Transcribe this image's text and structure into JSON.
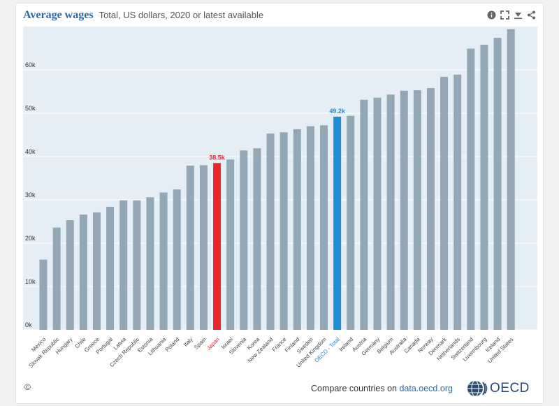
{
  "header": {
    "title": "Average wages",
    "subtitle": "Total, US dollars, 2020 or latest available"
  },
  "toolbar": {
    "icons": [
      "info-icon",
      "fullscreen-icon",
      "download-icon",
      "share-icon"
    ]
  },
  "footer": {
    "copyright": "©",
    "compare_prefix": "Compare countries on ",
    "compare_link": "data.oecd.org",
    "logo_text": "OECD"
  },
  "colors": {
    "bar": "#93a8b4",
    "highlight_red": "#e8262b",
    "highlight_blue": "#1f8dd6",
    "plot_bg": "#e4eef4",
    "grid": "#ffffff",
    "tick_text": "#333333"
  },
  "chart_data": {
    "type": "bar",
    "title": "Average wages",
    "subtitle": "Total, US dollars, 2020 or latest available",
    "xlabel": "",
    "ylabel": "",
    "ylim": [
      0,
      70000
    ],
    "yticks": [
      0,
      10000,
      20000,
      30000,
      40000,
      50000,
      60000
    ],
    "ytick_labels": [
      "0k",
      "10k",
      "20k",
      "30k",
      "40k",
      "50k",
      "60k"
    ],
    "grid": true,
    "categories": [
      "Mexico",
      "Slovak Republic",
      "Hungary",
      "Chile",
      "Greece",
      "Portugal",
      "Latvia",
      "Czech Republic",
      "Estonia",
      "Lithuania",
      "Poland",
      "Italy",
      "Spain",
      "Japan",
      "Israel",
      "Slovenia",
      "Korea",
      "New Zealand",
      "France",
      "Finland",
      "Sweden",
      "United Kingdom",
      "OECD - Total",
      "Ireland",
      "Austria",
      "Germany",
      "Belgium",
      "Australia",
      "Canada",
      "Norway",
      "Denmark",
      "Netherlands",
      "Switzerland",
      "Luxembourg",
      "Iceland",
      "United States"
    ],
    "values": [
      16200,
      23600,
      25300,
      26600,
      27100,
      28400,
      29900,
      29900,
      30600,
      31700,
      32400,
      37900,
      38000,
      38500,
      39300,
      41400,
      41900,
      45300,
      45600,
      46300,
      47000,
      47200,
      49200,
      49400,
      53100,
      53600,
      54300,
      55200,
      55300,
      55800,
      58400,
      58900,
      64900,
      65800,
      67400,
      69400
    ],
    "highlights": [
      {
        "category": "Japan",
        "color": "red",
        "label": "38.5k"
      },
      {
        "category": "OECD - Total",
        "color": "blue",
        "label": "49.2k"
      }
    ]
  }
}
